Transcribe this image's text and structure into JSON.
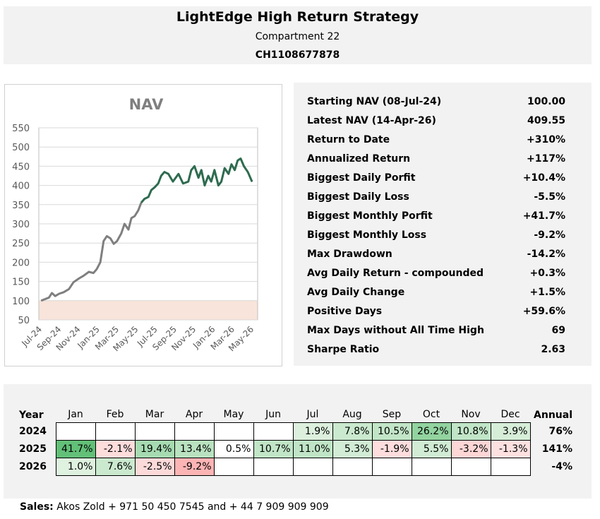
{
  "header": {
    "title": "LightEdge High Return Strategy",
    "subtitle": "Compartment 22",
    "isin": "CH1108677878"
  },
  "stats": [
    {
      "label": "Starting NAV (08-Jul-24)",
      "value": "100.00"
    },
    {
      "label": "Latest NAV (14-Apr-26)",
      "value": "409.55"
    },
    {
      "label": "Return to Date",
      "value": "+310%"
    },
    {
      "label": "Annualized Return",
      "value": "+117%"
    },
    {
      "label": "Biggest Daily Porfit",
      "value": "+10.4%"
    },
    {
      "label": "Biggest Daily Loss",
      "value": "-5.5%"
    },
    {
      "label": "Biggest Monthly Porfit",
      "value": "+41.7%"
    },
    {
      "label": "Biggest Monthly Loss",
      "value": "-9.2%"
    },
    {
      "label": "Max Drawdown",
      "value": "-14.2%"
    },
    {
      "label": "Avg Daily Return - compounded",
      "value": "+0.3%"
    },
    {
      "label": "Avg Daily Change",
      "value": "+1.5%"
    },
    {
      "label": "Positive Days",
      "value": "+59.6%"
    },
    {
      "label": "Max Days without All Time High",
      "value": "69"
    },
    {
      "label": "Sharpe Ratio",
      "value": "2.63"
    }
  ],
  "returns": {
    "year_header": "Year",
    "annual_header": "Annual",
    "months": [
      "Jan",
      "Feb",
      "Mar",
      "Apr",
      "May",
      "Jun",
      "Jul",
      "Aug",
      "Sep",
      "Oct",
      "Nov",
      "Dec"
    ],
    "rows": [
      {
        "year": "2024",
        "values": [
          "",
          "",
          "",
          "",
          "",
          "",
          "1.9%",
          "7.8%",
          "10.5%",
          "26.2%",
          "10.8%",
          "3.9%"
        ],
        "annual": "76%"
      },
      {
        "year": "2025",
        "values": [
          "41.7%",
          "-2.1%",
          "19.4%",
          "13.4%",
          "0.5%",
          "10.7%",
          "11.0%",
          "5.3%",
          "-1.9%",
          "5.5%",
          "-3.2%",
          "-1.3%"
        ],
        "annual": "141%"
      },
      {
        "year": "2026",
        "values": [
          "1.0%",
          "7.6%",
          "-2.5%",
          "-9.2%",
          "",
          "",
          "",
          "",
          "",
          "",
          "",
          ""
        ],
        "annual": "-4%"
      }
    ]
  },
  "footer": {
    "label": "Sales:",
    "text": "Akos Zold + 971 50 450 7545 and + 44 7 909 909 909"
  },
  "chart_data": {
    "type": "line",
    "title": "NAV",
    "x_tick_labels": [
      "Jul-24",
      "Sep-24",
      "Nov-24",
      "Jan-25",
      "Mar-25",
      "May-25",
      "Jul-25",
      "Sep-25",
      "Nov-25",
      "Jan-26",
      "Mar-26",
      "May-26"
    ],
    "ylim": [
      50,
      550
    ],
    "yticks": [
      50,
      100,
      150,
      200,
      250,
      300,
      350,
      400,
      450,
      500,
      550
    ],
    "grid": true,
    "baseline": 100,
    "colors": {
      "line_early": "#7f7f7f",
      "line_late": "#2e6b4f",
      "below_baseline_fill": "#f8e4da",
      "grid": "#d9d9d9"
    },
    "series": [
      {
        "x": [
          "2024-07-08",
          "2024-07-20",
          "2024-08-01",
          "2024-08-10",
          "2024-08-20",
          "2024-09-01",
          "2024-09-15",
          "2024-10-01",
          "2024-10-15",
          "2024-11-01",
          "2024-11-15",
          "2024-12-01",
          "2024-12-15",
          "2024-12-25",
          "2025-01-05",
          "2025-01-15",
          "2025-01-25",
          "2025-02-05",
          "2025-02-15",
          "2025-02-25",
          "2025-03-10",
          "2025-03-20",
          "2025-04-01",
          "2025-04-10",
          "2025-04-20",
          "2025-05-01",
          "2025-05-10",
          "2025-05-20",
          "2025-06-01",
          "2025-06-10",
          "2025-06-20",
          "2025-07-01",
          "2025-07-10",
          "2025-07-20",
          "2025-08-01",
          "2025-08-15",
          "2025-09-01",
          "2025-09-15",
          "2025-10-01",
          "2025-10-10",
          "2025-10-20",
          "2025-11-01",
          "2025-11-10",
          "2025-11-20",
          "2025-12-01",
          "2025-12-10",
          "2025-12-20",
          "2026-01-01",
          "2026-01-10",
          "2026-01-20",
          "2026-02-01",
          "2026-02-10",
          "2026-02-20",
          "2026-03-01",
          "2026-03-10",
          "2026-03-20",
          "2026-04-01",
          "2026-04-14"
        ],
        "y": [
          100,
          104,
          108,
          120,
          112,
          118,
          122,
          130,
          148,
          158,
          165,
          175,
          172,
          182,
          200,
          255,
          268,
          262,
          248,
          255,
          275,
          300,
          285,
          315,
          320,
          335,
          355,
          365,
          370,
          388,
          395,
          405,
          425,
          435,
          430,
          410,
          430,
          405,
          410,
          440,
          450,
          420,
          440,
          400,
          425,
          410,
          440,
          400,
          410,
          445,
          430,
          455,
          440,
          465,
          470,
          450,
          435,
          409.55
        ]
      }
    ]
  }
}
